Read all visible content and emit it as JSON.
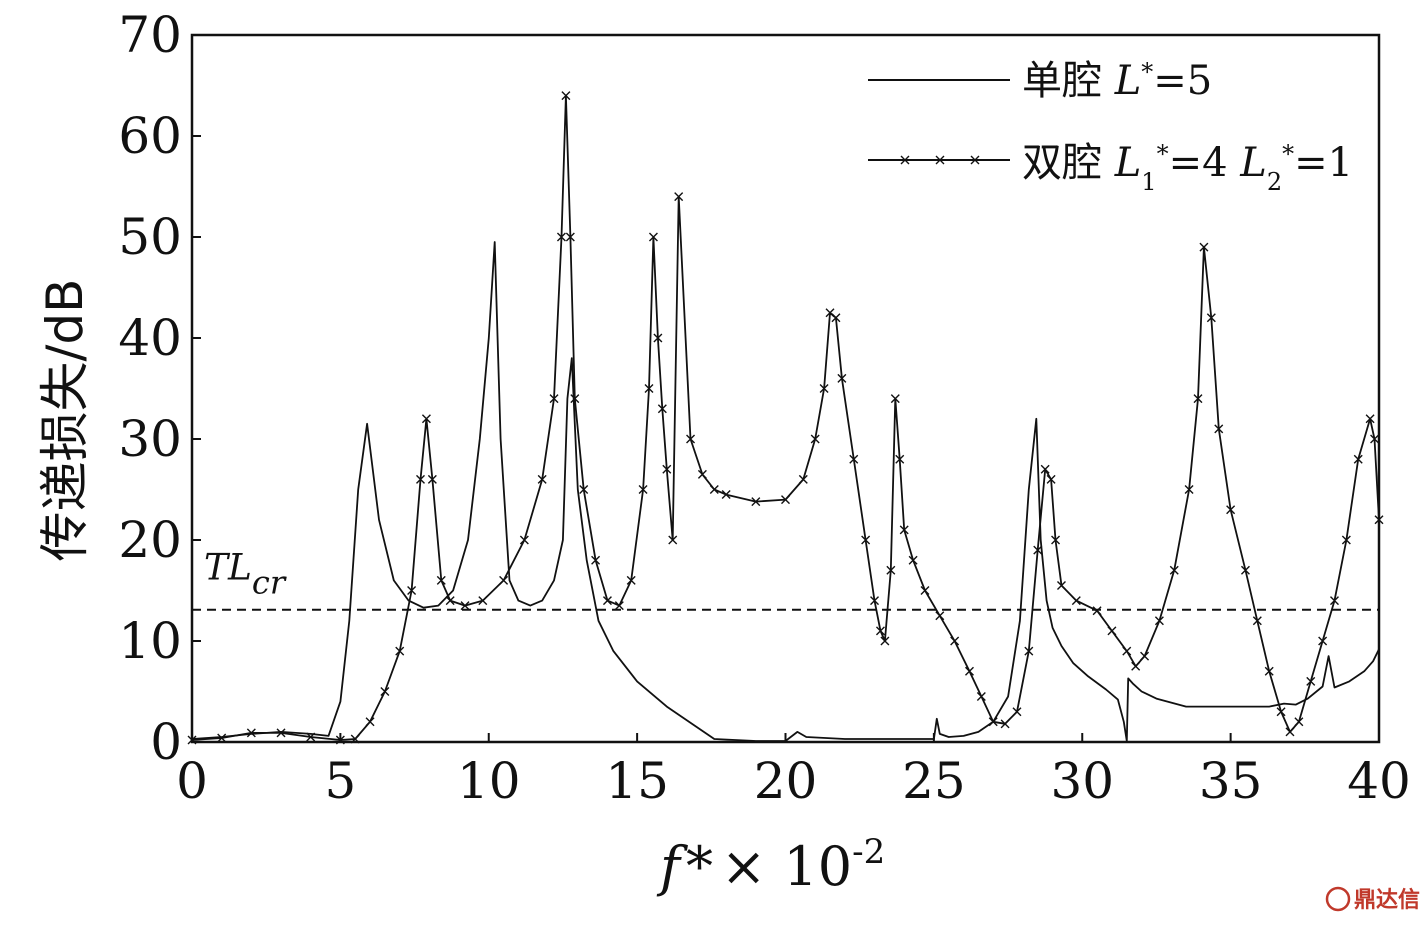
{
  "chart_data": {
    "type": "line",
    "xlabel": "f * × 10-2",
    "ylabel": "传递损失/dB",
    "xlim": [
      0,
      40
    ],
    "ylim": [
      0,
      70
    ],
    "xticks": [
      0,
      5,
      10,
      15,
      20,
      25,
      30,
      35,
      40
    ],
    "yticks": [
      0,
      10,
      20,
      30,
      40,
      50,
      60,
      70
    ],
    "grid": false,
    "legend_position": "top-right",
    "reference_line": {
      "label": "TLcr",
      "y": 13.1,
      "style": "dashed"
    },
    "series": [
      {
        "name": "单腔 L*=5",
        "marker": "none",
        "x": [
          0,
          1,
          2,
          3,
          4,
          4.6,
          5,
          5.3,
          5.6,
          5.9,
          6.3,
          6.8,
          7.3,
          7.8,
          8.3,
          8.8,
          9.3,
          9.7,
          10.0,
          10.2,
          10.4,
          10.7,
          11.0,
          11.4,
          11.8,
          12.2,
          12.5,
          12.65,
          12.8,
          13.0,
          13.3,
          13.7,
          14.2,
          15.0,
          16.0,
          17.0,
          17.6,
          19,
          20,
          20.4,
          20.7,
          22,
          24,
          25,
          25.1,
          25.2,
          25.5,
          26,
          26.5,
          27,
          27.5,
          27.9,
          28.2,
          28.45,
          28.6,
          28.8,
          29.0,
          29.3,
          29.7,
          30.2,
          30.8,
          31.2,
          31.4,
          31.5,
          31.55,
          31.7,
          32.0,
          32.5,
          33.5,
          34.5,
          35.5,
          36.3,
          36.8,
          37.2,
          37.6,
          38.1,
          38.3,
          38.5,
          39.0,
          39.5,
          39.8,
          40
        ],
        "y": [
          0.3,
          0.5,
          0.8,
          1.0,
          0.8,
          0.6,
          4,
          12,
          25,
          31.5,
          22,
          16,
          14,
          13.3,
          13.5,
          15,
          20,
          30,
          40,
          49.5,
          30,
          16,
          14,
          13.5,
          14,
          16,
          20,
          34,
          38,
          25,
          18,
          12,
          9,
          6,
          3.5,
          1.5,
          0.3,
          0.1,
          0.1,
          1.0,
          0.5,
          0.3,
          0.3,
          0.3,
          2.3,
          0.8,
          0.5,
          0.6,
          1.0,
          2.0,
          4.5,
          12,
          25,
          32,
          20,
          14,
          11.3,
          9.5,
          7.8,
          6.5,
          5.2,
          4.2,
          2,
          0.1,
          6.3,
          5.8,
          5.0,
          4.3,
          3.5,
          3.5,
          3.5,
          3.5,
          3.8,
          3.7,
          4.3,
          5.5,
          8.5,
          5.4,
          6.0,
          7.0,
          8.0,
          9.2
        ]
      },
      {
        "name": "双腔 L1*=4 L2*=1",
        "marker": "x",
        "x": [
          0,
          1,
          2,
          3,
          4,
          5,
          5.5,
          6,
          6.5,
          7,
          7.4,
          7.7,
          7.9,
          8.1,
          8.4,
          8.7,
          9.2,
          9.8,
          10.5,
          11.2,
          11.8,
          12.2,
          12.45,
          12.6,
          12.75,
          12.9,
          13.2,
          13.6,
          14.0,
          14.4,
          14.8,
          15.2,
          15.4,
          15.55,
          15.7,
          15.85,
          16.0,
          16.2,
          16.4,
          16.8,
          17.2,
          17.6,
          18,
          19,
          20,
          20.6,
          21.0,
          21.3,
          21.5,
          21.7,
          21.9,
          22.3,
          22.7,
          23.0,
          23.2,
          23.35,
          23.55,
          23.7,
          23.85,
          24.0,
          24.3,
          24.7,
          25.2,
          25.7,
          26.2,
          26.6,
          27.0,
          27.4,
          27.8,
          28.2,
          28.5,
          28.75,
          28.95,
          29.1,
          29.3,
          29.8,
          30.5,
          31.0,
          31.5,
          31.8,
          32.1,
          32.6,
          33.1,
          33.6,
          33.9,
          34.1,
          34.35,
          34.6,
          35.0,
          35.5,
          35.9,
          36.3,
          36.7,
          37.0,
          37.3,
          37.7,
          38.1,
          38.5,
          38.9,
          39.3,
          39.7,
          39.85,
          40
        ],
        "y": [
          0.2,
          0.4,
          0.9,
          0.9,
          0.5,
          0.2,
          0.3,
          2,
          5,
          9,
          15,
          26,
          32,
          26,
          16,
          14,
          13.5,
          14,
          16,
          20,
          26,
          34,
          50,
          64,
          50,
          34,
          25,
          18,
          14,
          13.5,
          16,
          25,
          35,
          50,
          40,
          33,
          27,
          20,
          54,
          30,
          26.5,
          25,
          24.5,
          23.8,
          24,
          26,
          30,
          35,
          42.5,
          42,
          36,
          28,
          20,
          14,
          11,
          10,
          17,
          34,
          28,
          21,
          18,
          15,
          12.5,
          10,
          7,
          4.5,
          2,
          1.8,
          3,
          9,
          19,
          27,
          26,
          20,
          15.5,
          14,
          13,
          11,
          9,
          7.5,
          8.5,
          12,
          17,
          25,
          34,
          49,
          42,
          31,
          23,
          17,
          12,
          7,
          3,
          1,
          2,
          6,
          10,
          14,
          20,
          28,
          32,
          30,
          22
        ]
      }
    ]
  },
  "legend": {
    "entry1": {
      "prefix": "单腔 ",
      "var": "L",
      "sup": "*",
      "eq": "=5"
    },
    "entry2": {
      "prefix": "双腔 ",
      "var1": "L",
      "sub1": "1",
      "sup1": "*",
      "eq1": "=4 ",
      "var2": "L",
      "sub2": "2",
      "sup2": "*",
      "eq2": "=1"
    }
  },
  "axes_text": {
    "ylabel": "传递损失/dB",
    "xlabel_main": "f",
    "xlabel_star": "*",
    "xlabel_times": "× 10",
    "xlabel_exp": "-2",
    "ref_main": "TL",
    "ref_sub": "cr"
  },
  "watermark": "鼎达信"
}
